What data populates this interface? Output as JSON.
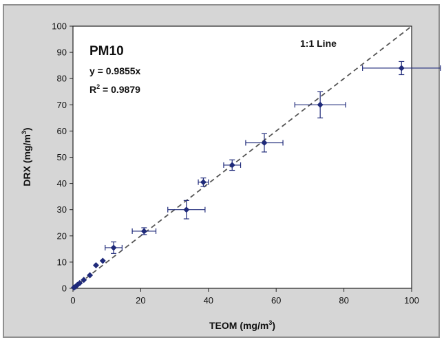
{
  "chart_data": {
    "type": "scatter",
    "title": "PM10",
    "xlabel": "TEOM (mg/m",
    "ylabel": "DRX (mg/m",
    "label_unit_superscript": "3",
    "label_close": ")",
    "xlim": [
      0,
      100
    ],
    "ylim": [
      0,
      100
    ],
    "xticks": [
      0,
      20,
      40,
      60,
      80,
      100
    ],
    "yticks": [
      0,
      10,
      20,
      30,
      40,
      50,
      60,
      70,
      80,
      90,
      100
    ],
    "grid": false,
    "equation": "y = 0.9855x",
    "r2_prefix": "R",
    "r2_superscript": "2",
    "r2_suffix": " = 0.9879",
    "reference_line_label": "1:1 Line",
    "reference_line_slope": 1,
    "series": [
      {
        "points": [
          {
            "x": 0.3,
            "y": 0.3
          },
          {
            "x": 0.8,
            "y": 0.7
          },
          {
            "x": 1.3,
            "y": 1.3
          },
          {
            "x": 2.0,
            "y": 2.0
          },
          {
            "x": 3.2,
            "y": 3.2
          },
          {
            "x": 5.0,
            "y": 5.0
          },
          {
            "x": 6.8,
            "y": 8.8
          },
          {
            "x": 8.8,
            "y": 10.5
          },
          {
            "x": 12.0,
            "y": 15.5,
            "xerr": 2.5,
            "yerr": 2.2
          },
          {
            "x": 21.0,
            "y": 21.8,
            "xerr": 3.5,
            "yerr": 1.3
          },
          {
            "x": 33.5,
            "y": 30.0,
            "xerr": 5.5,
            "yerr": 3.5
          },
          {
            "x": 38.5,
            "y": 40.5,
            "xerr": 1.5,
            "yerr": 1.6
          },
          {
            "x": 47.0,
            "y": 47.0,
            "xerr": 2.5,
            "yerr": 2.0
          },
          {
            "x": 56.5,
            "y": 55.5,
            "xerr": 5.5,
            "yerr": 3.5
          },
          {
            "x": 73.0,
            "y": 70.0,
            "xerr": 7.5,
            "yerr": 5.0
          },
          {
            "x": 97.0,
            "y": 84.0,
            "xerr": 11.5,
            "yerr": 2.5
          }
        ]
      }
    ],
    "marker_color": "#1f2a7a",
    "reference_line_color": "#555555"
  }
}
